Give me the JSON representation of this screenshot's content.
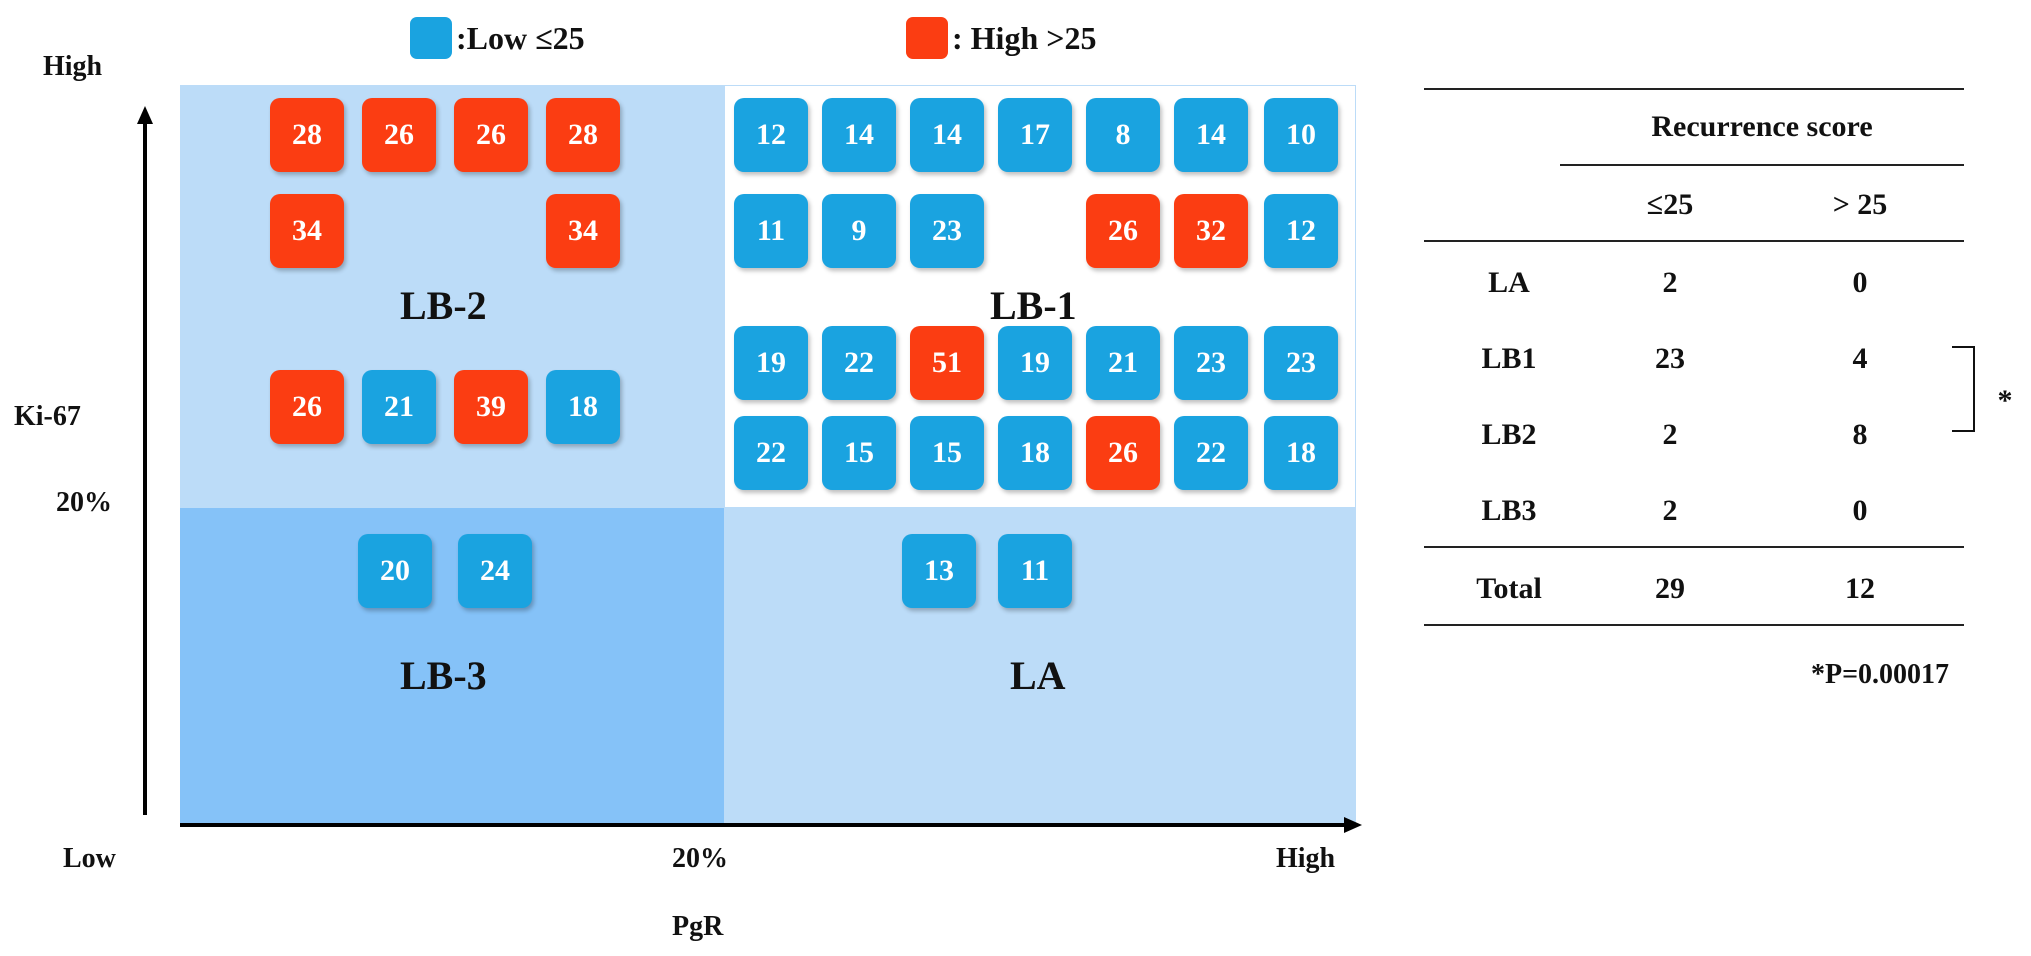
{
  "legend": {
    "low_label": ":Low ≤25",
    "high_label": ": High >25",
    "low_color": "#1aa3e0",
    "high_color": "#fb3d12"
  },
  "axes": {
    "y_high": "High",
    "y_name": "Ki-67",
    "y_threshold": "20%",
    "x_low": "Low",
    "x_threshold": "20%",
    "x_high": "High",
    "x_name": "PgR"
  },
  "quadrants": {
    "lb2": "LB-2",
    "lb1": "LB-1",
    "lb3": "LB-3",
    "la": "LA"
  },
  "scores": {
    "lb2_row1": [
      {
        "v": "28",
        "c": "high"
      },
      {
        "v": "26",
        "c": "high"
      },
      {
        "v": "26",
        "c": "high"
      },
      {
        "v": "28",
        "c": "high"
      }
    ],
    "lb2_row2": [
      {
        "v": "34",
        "c": "high"
      },
      {
        "v": "34",
        "c": "high"
      }
    ],
    "lb2_row3": [
      {
        "v": "26",
        "c": "high"
      },
      {
        "v": "21",
        "c": "low"
      },
      {
        "v": "39",
        "c": "high"
      },
      {
        "v": "18",
        "c": "low"
      }
    ],
    "lb1_row1": [
      {
        "v": "12",
        "c": "low"
      },
      {
        "v": "14",
        "c": "low"
      },
      {
        "v": "14",
        "c": "low"
      },
      {
        "v": "17",
        "c": "low"
      },
      {
        "v": "8",
        "c": "low"
      },
      {
        "v": "14",
        "c": "low"
      },
      {
        "v": "10",
        "c": "low"
      }
    ],
    "lb1_row2": [
      {
        "v": "11",
        "c": "low"
      },
      {
        "v": "9",
        "c": "low"
      },
      {
        "v": "23",
        "c": "low"
      },
      {
        "v": "26",
        "c": "high"
      },
      {
        "v": "32",
        "c": "high"
      },
      {
        "v": "12",
        "c": "low"
      }
    ],
    "lb1_row3": [
      {
        "v": "19",
        "c": "low"
      },
      {
        "v": "22",
        "c": "low"
      },
      {
        "v": "51",
        "c": "high"
      },
      {
        "v": "19",
        "c": "low"
      },
      {
        "v": "21",
        "c": "low"
      },
      {
        "v": "23",
        "c": "low"
      },
      {
        "v": "23",
        "c": "low"
      }
    ],
    "lb1_row4": [
      {
        "v": "22",
        "c": "low"
      },
      {
        "v": "15",
        "c": "low"
      },
      {
        "v": "15",
        "c": "low"
      },
      {
        "v": "18",
        "c": "low"
      },
      {
        "v": "26",
        "c": "high"
      },
      {
        "v": "22",
        "c": "low"
      },
      {
        "v": "18",
        "c": "low"
      }
    ],
    "lb3_row1": [
      {
        "v": "20",
        "c": "low"
      },
      {
        "v": "24",
        "c": "low"
      }
    ],
    "la_row1": [
      {
        "v": "13",
        "c": "low"
      },
      {
        "v": "11",
        "c": "low"
      }
    ]
  },
  "table": {
    "header": "Recurrence score",
    "col_low": "≤25",
    "col_high": "> 25",
    "rows": [
      {
        "name": "LA",
        "low": "2",
        "high": "0"
      },
      {
        "name": "LB1",
        "low": "23",
        "high": "4"
      },
      {
        "name": "LB2",
        "low": "2",
        "high": "8"
      },
      {
        "name": "LB3",
        "low": "2",
        "high": "0"
      }
    ],
    "total": {
      "name": "Total",
      "low": "29",
      "high": "12"
    },
    "sig_mark": "*",
    "p_value": "*P=0.00017"
  }
}
